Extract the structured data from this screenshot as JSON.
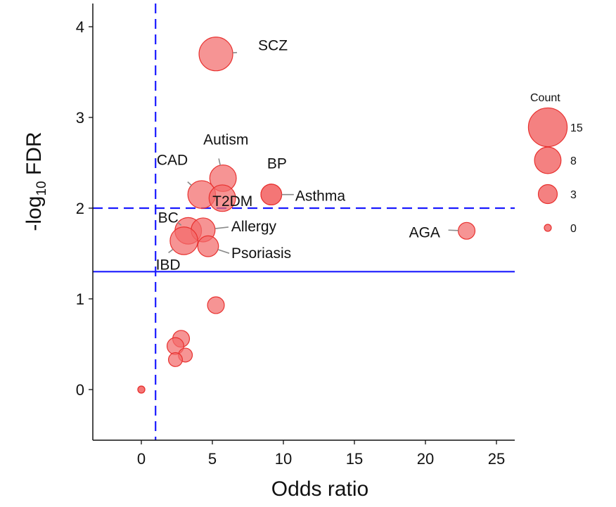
{
  "chart_data": {
    "type": "scatter",
    "title": "",
    "xlabel": "Odds ratio",
    "ylabel_main": "-log",
    "ylabel_sub": "10",
    "ylabel_tail": " FDR",
    "xlim": [
      -3.5,
      26.3
    ],
    "ylim": [
      -0.55,
      4.25
    ],
    "x_ticks": [
      0,
      5,
      10,
      15,
      20,
      25
    ],
    "y_ticks": [
      0,
      1,
      2,
      3,
      4
    ],
    "x_tick_labels": [
      "0",
      "5",
      "10",
      "15",
      "20",
      "25"
    ],
    "y_tick_labels": [
      "0",
      "1",
      "2",
      "3",
      "4"
    ],
    "grid": false,
    "reference_lines": [
      {
        "orientation": "vertical",
        "value": 1,
        "style": "dashed",
        "color": "#1a1aff"
      },
      {
        "orientation": "horizontal",
        "value": 2,
        "style": "dashed",
        "color": "#1a1aff"
      },
      {
        "orientation": "horizontal",
        "value": 1.3,
        "style": "solid",
        "color": "#1a1aff"
      }
    ],
    "point_fill": "#f26b6b",
    "point_stroke": "#e8312f",
    "label_line_color": "#8a8a8a",
    "points": [
      {
        "label": "SCZ",
        "x": 5.25,
        "y": 3.7,
        "count": 15
      },
      {
        "label": "Autism",
        "x": 5.75,
        "y": 2.33,
        "count": 8
      },
      {
        "label": "CAD",
        "x": 4.25,
        "y": 2.15,
        "count": 9
      },
      {
        "label": "T2DM",
        "x": 5.7,
        "y": 2.11,
        "count": 8
      },
      {
        "label": "BP",
        "x": 9.15,
        "y": 2.15,
        "count": 4
      },
      {
        "label": "Asthma",
        "x": 9.15,
        "y": 2.15,
        "count": 4
      },
      {
        "label": "BC",
        "x": 3.3,
        "y": 1.75,
        "count": 8
      },
      {
        "label": "Allergy",
        "x": 4.35,
        "y": 1.76,
        "count": 6
      },
      {
        "label": "IBD",
        "x": 3.0,
        "y": 1.64,
        "count": 9
      },
      {
        "label": "Psoriasis",
        "x": 4.7,
        "y": 1.58,
        "count": 4
      },
      {
        "label": "AGA",
        "x": 22.9,
        "y": 1.75,
        "count": 2
      },
      {
        "label": "",
        "x": 5.25,
        "y": 0.93,
        "count": 2
      },
      {
        "label": "",
        "x": 2.8,
        "y": 0.56,
        "count": 2
      },
      {
        "label": "",
        "x": 2.4,
        "y": 0.48,
        "count": 2
      },
      {
        "label": "",
        "x": 3.1,
        "y": 0.38,
        "count": 1
      },
      {
        "label": "",
        "x": 2.4,
        "y": 0.33,
        "count": 1
      },
      {
        "label": "",
        "x": 0.0,
        "y": 0.0,
        "count": 0
      },
      {
        "label": "",
        "x": 0.0,
        "y": 0.0,
        "count": 0
      }
    ],
    "legend": {
      "title": "Count",
      "position": "right",
      "entries": [
        {
          "label": "15",
          "count": 15
        },
        {
          "label": "8",
          "count": 8
        },
        {
          "label": "3",
          "count": 3
        },
        {
          "label": "0",
          "count": 0
        }
      ]
    }
  }
}
